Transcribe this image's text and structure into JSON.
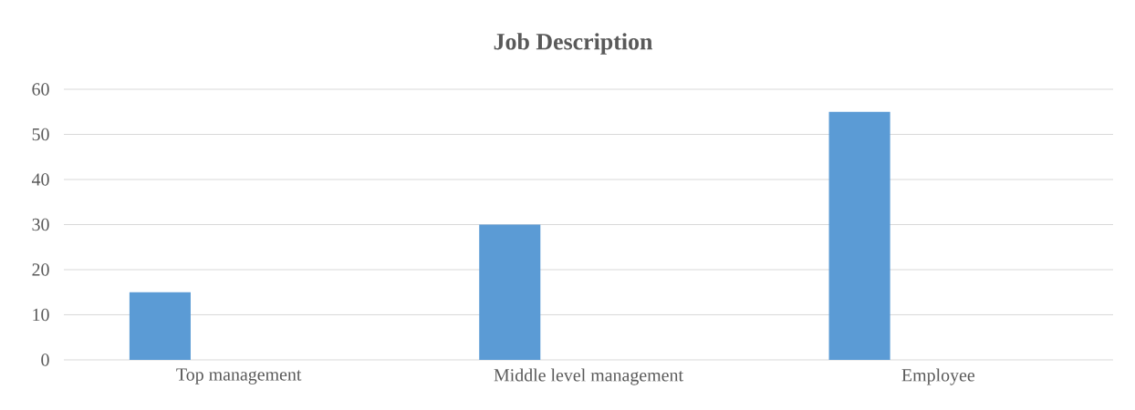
{
  "chart_data": {
    "type": "bar",
    "title": "Job Description",
    "categories": [
      "Top management",
      "Middle level  management",
      "Employee"
    ],
    "values": [
      15,
      30,
      55
    ],
    "color": "#5b9bd5",
    "ylim": [
      0,
      60
    ],
    "yticks": [
      0,
      10,
      20,
      30,
      40,
      50,
      60
    ],
    "grid": "y"
  }
}
